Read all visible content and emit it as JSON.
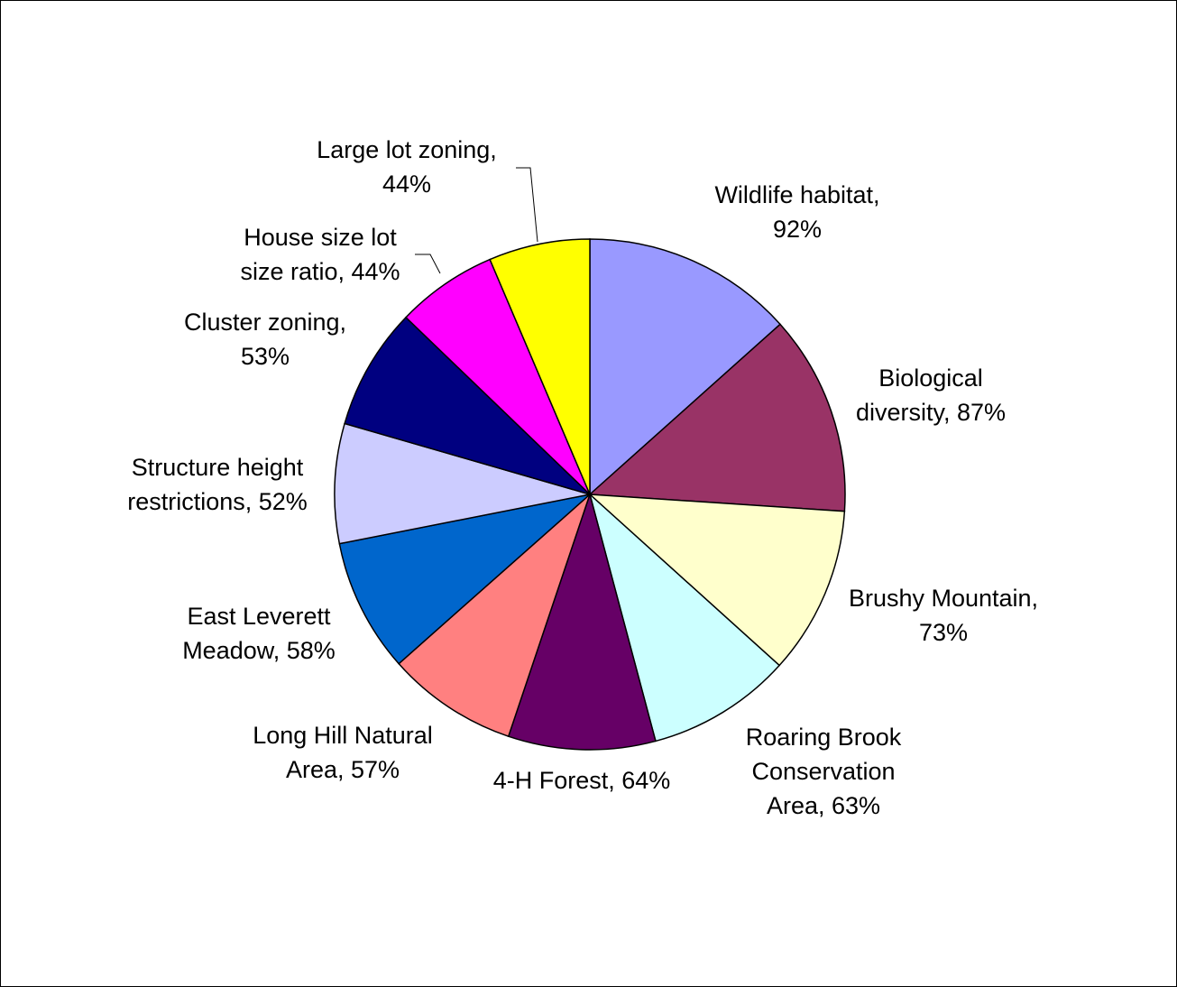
{
  "chart_data": {
    "type": "pie",
    "title": "",
    "slices": [
      {
        "label_lines": [
          "Wildlife habitat,",
          "92%"
        ],
        "value": 92,
        "color": "#9999ff"
      },
      {
        "label_lines": [
          "Biological",
          "diversity, 87%"
        ],
        "value": 87,
        "color": "#993366"
      },
      {
        "label_lines": [
          "Brushy Mountain,",
          "73%"
        ],
        "value": 73,
        "color": "#ffffcc"
      },
      {
        "label_lines": [
          "Roaring Brook",
          "Conservation",
          "Area, 63%"
        ],
        "value": 63,
        "color": "#ccffff"
      },
      {
        "label_lines": [
          "4-H Forest, 64%"
        ],
        "value": 64,
        "color": "#660066"
      },
      {
        "label_lines": [
          "Long Hill Natural",
          "Area, 57%"
        ],
        "value": 57,
        "color": "#ff8080"
      },
      {
        "label_lines": [
          "East Leverett",
          "Meadow, 58%"
        ],
        "value": 58,
        "color": "#0066cc"
      },
      {
        "label_lines": [
          "Structure height",
          "restrictions, 52%"
        ],
        "value": 52,
        "color": "#ccccff"
      },
      {
        "label_lines": [
          "Cluster zoning,",
          "53%"
        ],
        "value": 53,
        "color": "#000080"
      },
      {
        "label_lines": [
          "House size lot",
          "size ratio, 44%"
        ],
        "value": 44,
        "color": "#ff00ff"
      },
      {
        "label_lines": [
          "Large lot zoning,",
          "44%"
        ],
        "value": 44,
        "color": "#ffff00"
      }
    ],
    "start_angle": "12 o'clock",
    "direction": "clockwise",
    "legend": "none"
  }
}
